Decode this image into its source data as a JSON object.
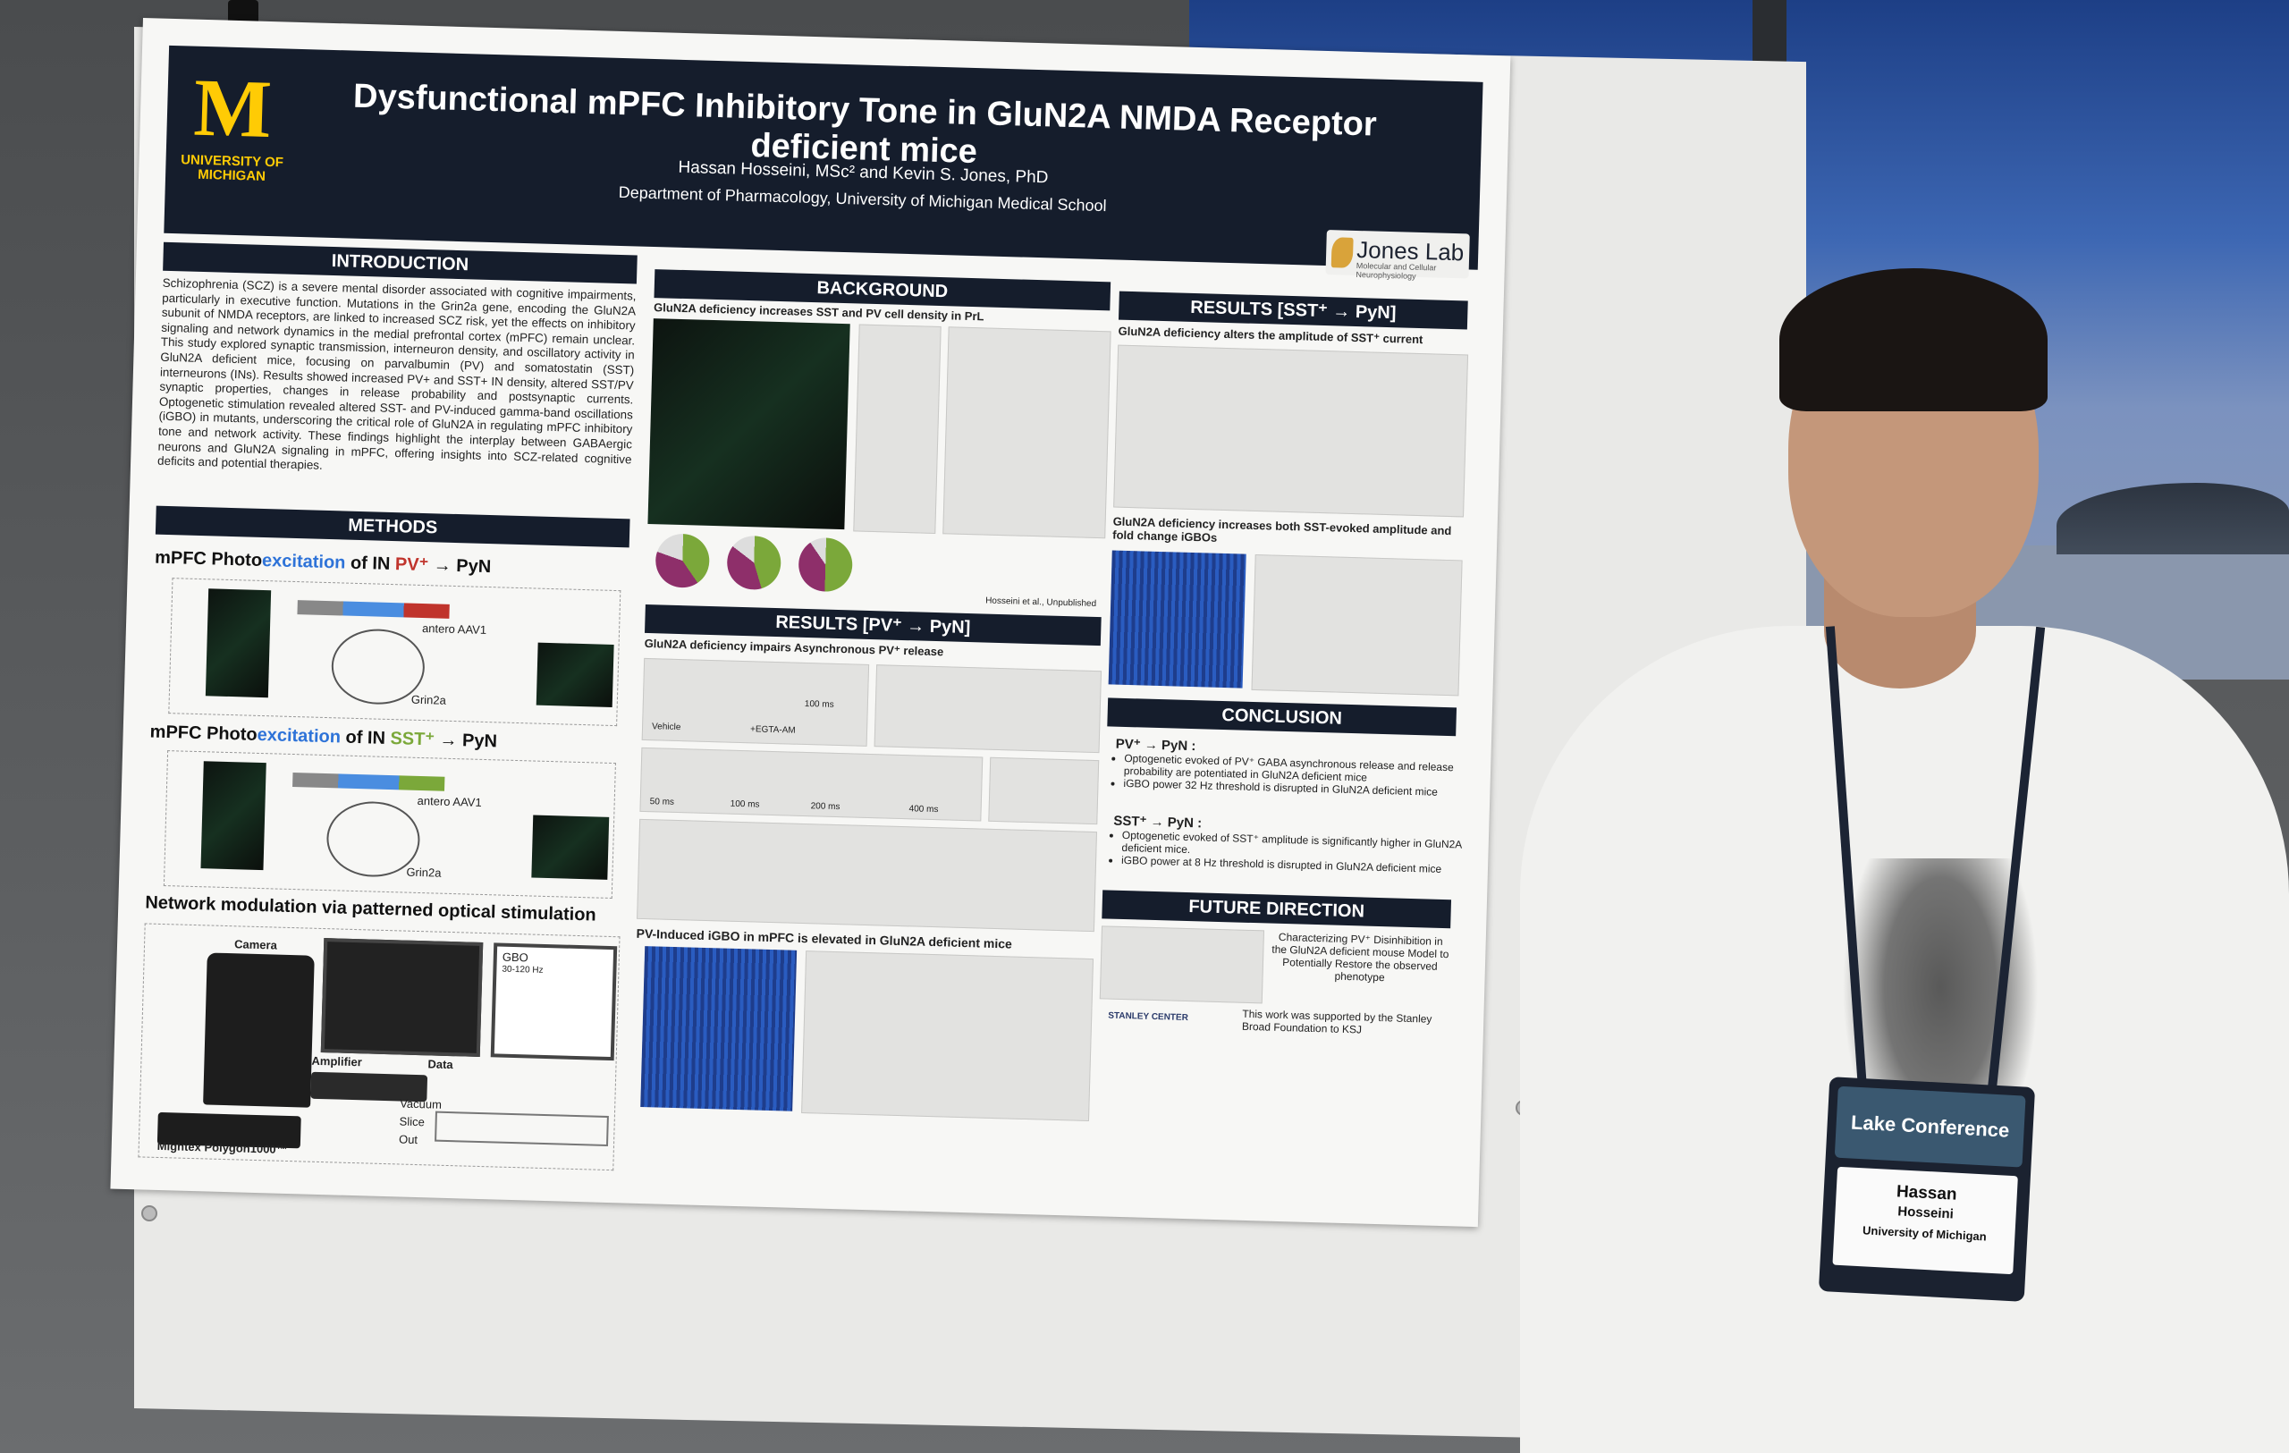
{
  "poster": {
    "university": "UNIVERSITY OF MICHIGAN",
    "logo_letter": "M",
    "title": "Dysfunctional mPFC Inhibitory Tone in GluN2A NMDA Receptor deficient mice",
    "authors": "Hassan Hosseini, MSc² and Kevin S. Jones, PhD",
    "department": "Department of Pharmacology, University of Michigan Medical School",
    "lab_name": "Jones Lab",
    "lab_sub": "Molecular and Cellular Neurophysiology",
    "introduction": {
      "header": "INTRODUCTION",
      "text": "Schizophrenia (SCZ) is a severe mental disorder associated with cognitive impairments, particularly in executive function. Mutations in the Grin2a gene, encoding the GluN2A subunit of NMDA receptors, are linked to increased SCZ risk, yet the effects on inhibitory signaling and network dynamics in the medial prefrontal cortex (mPFC) remain unclear. This study explored synaptic transmission, interneuron density, and oscillatory activity in GluN2A deficient mice, focusing on parvalbumin (PV) and somatostatin (SST) interneurons (INs). Results showed increased PV+ and SST+ IN density, altered SST/PV synaptic properties, changes in release probability and postsynaptic currents. Optogenetic stimulation revealed altered SST- and PV-induced gamma-band oscillations (iGBO) in mutants, underscoring the critical role of GluN2A in regulating mPFC inhibitory tone and network activity. These findings highlight the interplay between GABAergic neurons and GluN2A signaling in mPFC, offering insights into SCZ-related cognitive deficits and potential therapies."
    },
    "methods": {
      "header": "METHODS",
      "pv_title_a": "mPFC Photo",
      "pv_title_b": "excitation",
      "pv_title_c": " of IN ",
      "pv_title_d": "PV⁺",
      "pv_title_e": " → PyN",
      "sst_title_a": "mPFC Photo",
      "sst_title_b": "excitation",
      "sst_title_c": " of IN ",
      "sst_title_d": "SST⁺",
      "sst_title_e": " → PyN",
      "network_title": "Network modulation via patterned optical stimulation",
      "camera": "Camera",
      "amplifier": "Amplifier",
      "data": "Data",
      "gbo": "GBO",
      "gbo_range": "30-120 Hz",
      "vacuum": "Vacuum",
      "slice": "Slice",
      "out": "Out",
      "device": "Mightex Polygon1000™",
      "antero": "antero AAV1",
      "grin": "Grin2a"
    },
    "background": {
      "header": "BACKGROUND",
      "subtitle": "GluN2A deficiency increases SST and PV cell density in PrL",
      "credit": "Hosseini et al., Unpublished"
    },
    "results_pv": {
      "header": "RESULTS [PV⁺ → PyN]",
      "subtitle": "GluN2A deficiency impairs Asynchronous PV⁺ release",
      "vehicle": "Vehicle",
      "egta": "+EGTA-AM",
      "scale": "100 ms",
      "t50": "50 ms",
      "t100": "100 ms",
      "t200": "200 ms",
      "t400": "400 ms",
      "igbo_title": "PV-Induced iGBO in mPFC is elevated in GluN2A deficient mice"
    },
    "results_sst": {
      "header": "RESULTS [SST⁺ → PyN]",
      "subtitle": "GluN2A deficiency alters the amplitude of SST⁺ current",
      "subtitle2": "GluN2A deficiency increases both SST-evoked amplitude and fold change iGBOs"
    },
    "conclusion": {
      "header": "CONCLUSION",
      "pv_head": "PV⁺ → PyN :",
      "pv_items": [
        "Optogenetic evoked of PV⁺ GABA asynchronous release and release probability are potentiated in GluN2A deficient mice",
        "iGBO power 32 Hz threshold is disrupted in GluN2A deficient mice"
      ],
      "sst_head": "SST⁺ → PyN :",
      "sst_items": [
        "Optogenetic evoked of SST⁺ amplitude is significantly higher in GluN2A deficient mice.",
        "iGBO power at 8 Hz threshold is disrupted in GluN2A deficient mice"
      ]
    },
    "future": {
      "header": "FUTURE DIRECTION",
      "text": "Characterizing PV⁺ Disinhibition in the GluN2A deficient mouse Model to Potentially Restore the observed phenotype",
      "funding": "This work was supported by the Stanley Broad Foundation to KSJ",
      "stanley": "STANLEY CENTER"
    }
  },
  "badge": {
    "event": "Lake Conference",
    "first_name": "Hassan",
    "last_name": "Hosseini",
    "org": "University of Michigan"
  }
}
